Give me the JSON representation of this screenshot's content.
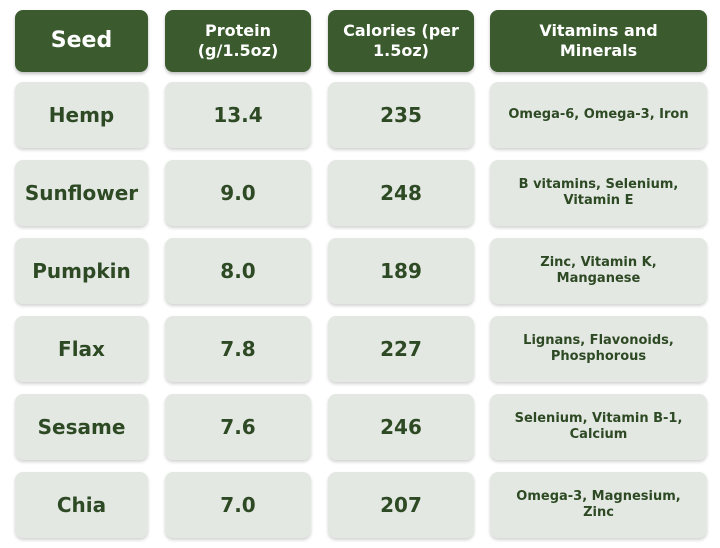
{
  "chart_data": {
    "type": "table",
    "columns": [
      "Seed",
      "Protein (g/1.5oz)",
      "Calories (per 1.5oz)",
      "Vitamins and Minerals"
    ],
    "rows": [
      {
        "seed": "Hemp",
        "protein": "13.4",
        "calories": "235",
        "vitamins": "Omega-6, Omega-3, Iron"
      },
      {
        "seed": "Sunflower",
        "protein": "9.0",
        "calories": "248",
        "vitamins": "B vitamins, Selenium, Vitamin E"
      },
      {
        "seed": "Pumpkin",
        "protein": "8.0",
        "calories": "189",
        "vitamins": "Zinc, Vitamin K, Manganese"
      },
      {
        "seed": "Flax",
        "protein": "7.8",
        "calories": "227",
        "vitamins": "Lignans, Flavonoids, Phosphorous"
      },
      {
        "seed": "Sesame",
        "protein": "7.6",
        "calories": "246",
        "vitamins": "Selenium, Vitamin B-1, Calcium"
      },
      {
        "seed": "Chia",
        "protein": "7.0",
        "calories": "207",
        "vitamins": "Omega-3, Magnesium, Zinc"
      }
    ]
  },
  "colors": {
    "header_bg": "#3b5b2f",
    "header_text": "#ffffff",
    "cell_bg": "#e4e8e3",
    "cell_text": "#2e4a24"
  }
}
